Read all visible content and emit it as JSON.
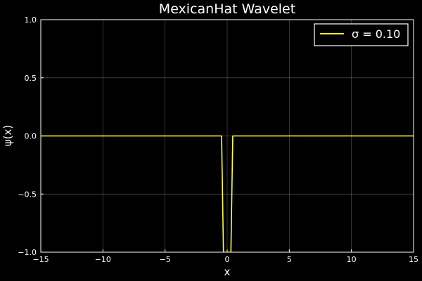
{
  "chart_data": {
    "type": "line",
    "title": "MexicanHat Wavelet",
    "xlabel": "x",
    "ylabel": "ψ(x)",
    "xlim": [
      -15,
      15
    ],
    "ylim": [
      -1.0,
      1.0
    ],
    "xticks": [
      -15,
      -10,
      -5,
      0,
      5,
      10,
      15
    ],
    "xtick_labels": [
      "−15",
      "−10",
      "−5",
      "0",
      "5",
      "10",
      "15"
    ],
    "yticks": [
      -1.0,
      -0.5,
      0.0,
      0.5,
      1.0
    ],
    "ytick_labels": [
      "−1.0",
      "−0.5",
      "0.0",
      "0.5",
      "1.0"
    ],
    "grid": true,
    "legend_position": "top-right",
    "series": [
      {
        "name": "σ = 0.10",
        "color": "#ffff33",
        "x": [
          -15,
          -0.45,
          -0.3,
          0.0,
          0.3,
          0.45,
          15
        ],
        "y": [
          0.0,
          0.0,
          -1.0,
          -1.0,
          -1.0,
          0.0,
          0.0
        ]
      }
    ]
  }
}
